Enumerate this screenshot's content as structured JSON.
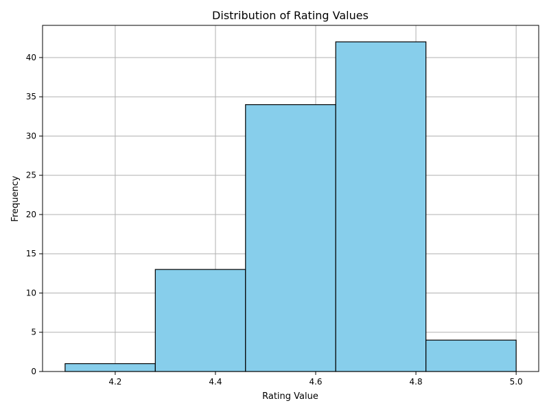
{
  "chart_data": {
    "type": "bar",
    "subtype": "histogram",
    "title": "Distribution of Rating Values",
    "xlabel": "Rating Value",
    "ylabel": "Frequency",
    "bins": [
      {
        "start": 4.1,
        "end": 4.28,
        "count": 1
      },
      {
        "start": 4.28,
        "end": 4.46,
        "count": 13
      },
      {
        "start": 4.46,
        "end": 4.64,
        "count": 34
      },
      {
        "start": 4.64,
        "end": 4.82,
        "count": 42
      },
      {
        "start": 4.82,
        "end": 5.0,
        "count": 4
      }
    ],
    "xlim": [
      4.055,
      5.045
    ],
    "ylim": [
      0,
      44.1
    ],
    "xticks": [
      4.2,
      4.4,
      4.6,
      4.8,
      5.0
    ],
    "xtick_labels": [
      "4.2",
      "4.4",
      "4.6",
      "4.8",
      "5.0"
    ],
    "yticks": [
      0,
      5,
      10,
      15,
      20,
      25,
      30,
      35,
      40
    ],
    "ytick_labels": [
      "0",
      "5",
      "10",
      "15",
      "20",
      "25",
      "30",
      "35",
      "40"
    ],
    "grid": true,
    "bar_color": "#87ceeb",
    "edge_color": "#000000",
    "grid_color": "#b0b0b0"
  }
}
